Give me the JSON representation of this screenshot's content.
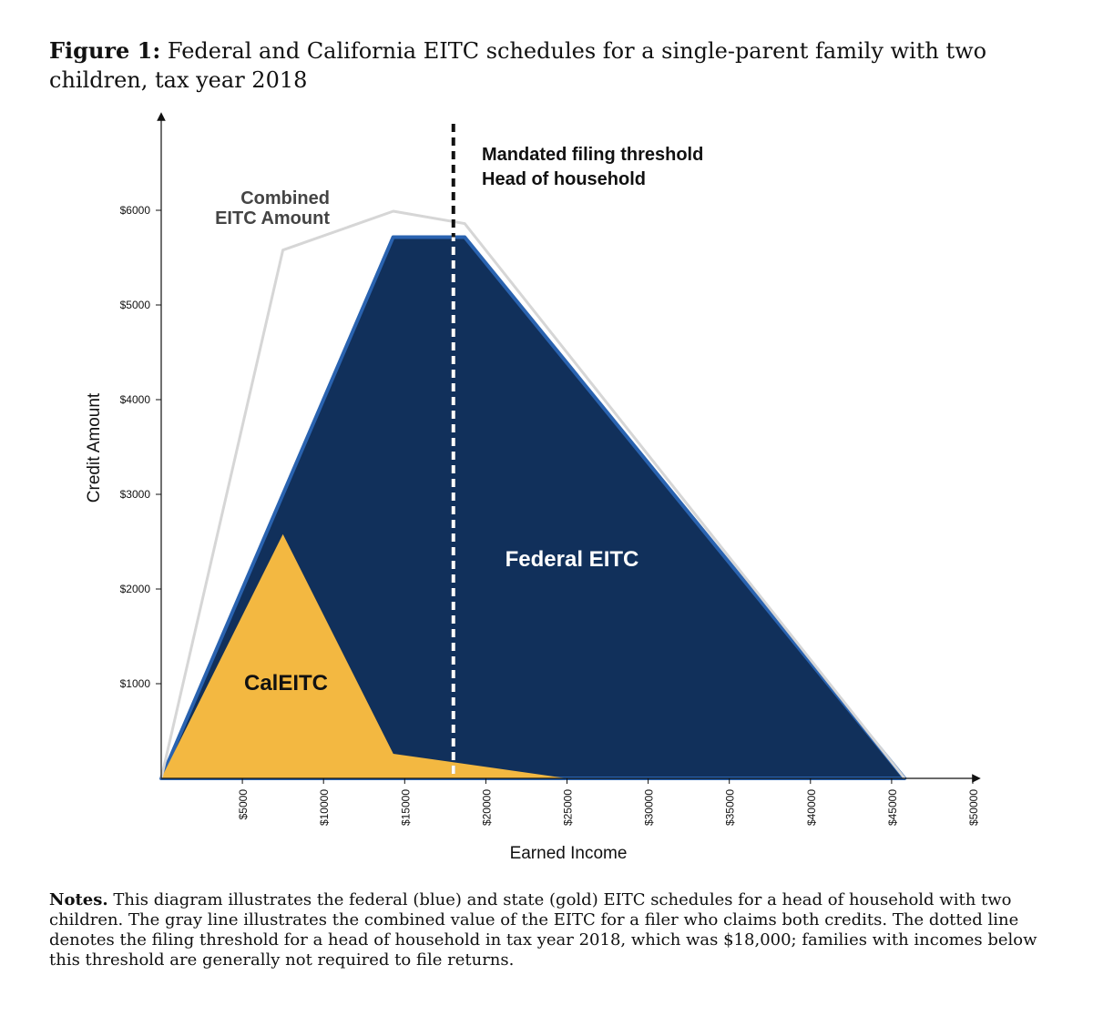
{
  "figure": {
    "label": "Figure 1:",
    "title": "Federal and California EITC schedules for a single-parent family with two children, tax year 2018"
  },
  "notes": {
    "label": "Notes.",
    "text": "This diagram illustrates the federal (blue) and state (gold) EITC schedules for a head of household with two children. The gray line illustrates the combined value of the EITC for a filer who claims both credits. The dotted line denotes the filing threshold for a head of household in tax year 2018, which was $18,000; families with incomes below this threshold are generally not required to file returns."
  },
  "chart_data": {
    "type": "area",
    "xlabel": "Earned Income",
    "ylabel": "Credit Amount",
    "xlim": [
      0,
      50000
    ],
    "ylim": [
      0,
      6800
    ],
    "x_ticks": [
      5000,
      10000,
      15000,
      20000,
      25000,
      30000,
      35000,
      40000,
      45000,
      50000
    ],
    "x_tick_labels": [
      "$5000",
      "$10000",
      "$15000",
      "$20000",
      "$25000",
      "$30000",
      "$35000",
      "$40000",
      "$45000",
      "$50000"
    ],
    "y_ticks": [
      1000,
      2000,
      3000,
      4000,
      5000,
      6000
    ],
    "y_tick_labels": [
      "$1000",
      "$2000",
      "$3000",
      "$4000",
      "$5000",
      "$6000"
    ],
    "grid": false,
    "series": [
      {
        "name": "Federal EITC",
        "color": "#11305b",
        "points": [
          [
            0,
            0
          ],
          [
            14290,
            5716
          ],
          [
            18700,
            5716
          ],
          [
            45800,
            0
          ]
        ]
      },
      {
        "name": "CalEITC",
        "color": "#f3b841",
        "points": [
          [
            0,
            0
          ],
          [
            7500,
            2580
          ],
          [
            14300,
            260
          ],
          [
            25000,
            0
          ]
        ]
      },
      {
        "name": "Combined EITC Amount",
        "color": "#d6d6d6",
        "points": [
          [
            0,
            0
          ],
          [
            7500,
            5580
          ],
          [
            14300,
            5990
          ],
          [
            18700,
            5860
          ],
          [
            45800,
            0
          ]
        ]
      }
    ],
    "threshold": {
      "x": 18000,
      "label_lines": [
        "Mandated filing threshold",
        "Head of household"
      ]
    },
    "annotations": {
      "federal": "Federal EITC",
      "caleitc": "CalEITC",
      "combined_lines": [
        "Combined",
        "EITC Amount"
      ]
    }
  }
}
